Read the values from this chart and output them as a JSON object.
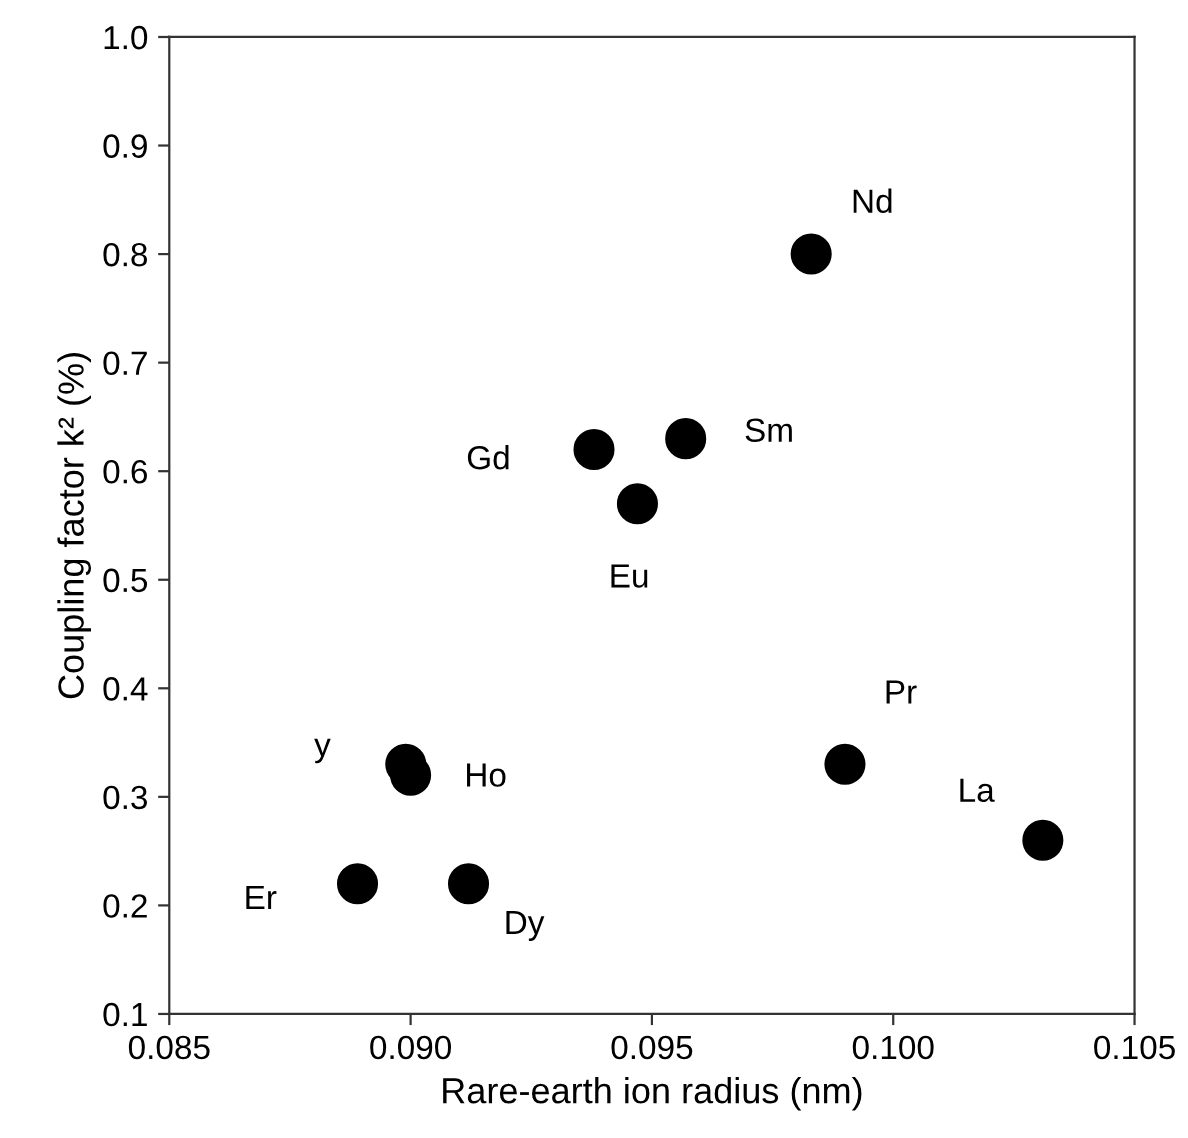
{
  "chart_data": {
    "type": "scatter",
    "xlabel": "Rare-earth ion radius (nm)",
    "ylabel": "Coupling factor k² (%)",
    "x": [
      0.0983,
      0.0938,
      0.0957,
      0.0947,
      0.0899,
      0.09,
      0.0889,
      0.0912,
      0.099,
      0.1031
    ],
    "series": [
      {
        "color": "#000000",
        "values": [
          0.8,
          0.62,
          0.63,
          0.57,
          0.33,
          0.32,
          0.22,
          0.22,
          0.33,
          0.26
        ]
      }
    ],
    "marker": "circle",
    "xlim": [
      0.085,
      0.105
    ],
    "xticks": [
      {
        "value": 0.085,
        "label": "0.085"
      },
      {
        "value": 0.09,
        "label": "0.090"
      },
      {
        "value": 0.095,
        "label": "0.095"
      },
      {
        "value": 0.1,
        "label": "0.100"
      },
      {
        "value": 0.105,
        "label": "0.105"
      }
    ],
    "ylim": [
      0.1,
      1.0
    ],
    "yticks": [
      0.1,
      0.2,
      0.3,
      0.4,
      0.5,
      0.6,
      0.7,
      0.8,
      0.9,
      {
        "value": 1.0,
        "label": "1.0"
      }
    ],
    "annotations": [
      {
        "text": "Nd",
        "x": 0.0983,
        "y": 0.8
      },
      {
        "text": "Gd",
        "x": 0.0938,
        "y": 0.62
      },
      {
        "text": "Sm",
        "x": 0.0957,
        "y": 0.63
      },
      {
        "text": "Eu",
        "x": 0.0947,
        "y": 0.57
      },
      {
        "text": "y",
        "x": 0.0899,
        "y": 0.33
      },
      {
        "text": "Ho",
        "x": 0.09,
        "y": 0.32
      },
      {
        "text": "Er",
        "x": 0.0889,
        "y": 0.22
      },
      {
        "text": "Dy",
        "x": 0.0912,
        "y": 0.22
      },
      {
        "text": "Pr",
        "x": 0.099,
        "y": 0.33
      },
      {
        "text": "La",
        "x": 0.1031,
        "y": 0.26
      }
    ],
    "grid": false,
    "legend": false
  }
}
